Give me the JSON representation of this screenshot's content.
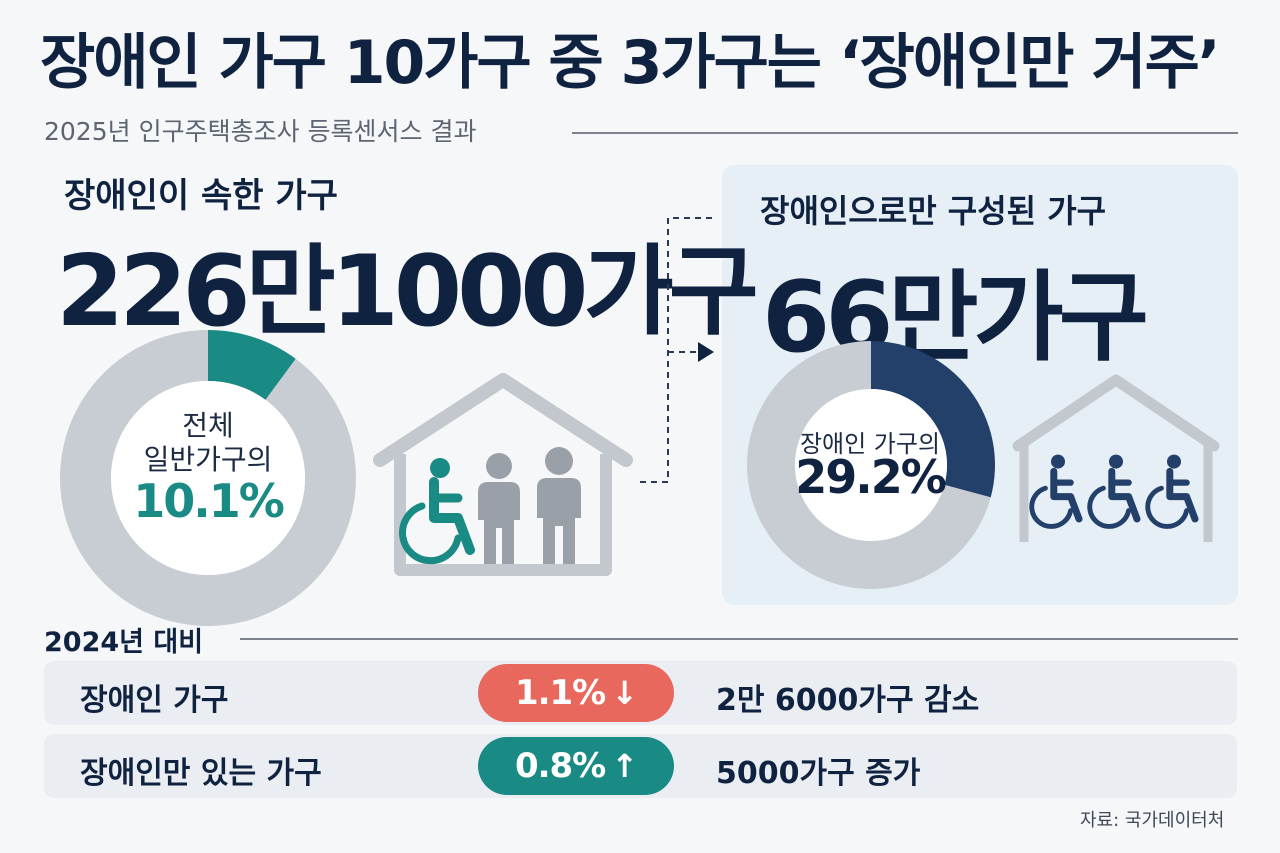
{
  "title": "장애인 가구 10가구 중 3가구는 ‘장애인만 거주’",
  "subtitle": "2025년 인구주택총조사 등록센서스 결과",
  "left_block": {
    "label": "장애인이 속한 가구",
    "value": "226만1000가구",
    "donut_line1": "전체",
    "donut_line2": "일반가구의",
    "donut_pct": "10.1%"
  },
  "right_block": {
    "label": "장애인으로만 구성된 가구",
    "value": "66만가구",
    "donut_line1": "장애인 가구의",
    "donut_pct": "29.2%"
  },
  "comparison": {
    "label": "2024년 대비",
    "rows": [
      {
        "label": "장애인 가구",
        "pill": "1.1%",
        "arrow": "↓",
        "detail": "2만 6000가구 감소"
      },
      {
        "label": "장애인만 있는 가구",
        "pill": "0.8%",
        "arrow": "↑",
        "detail": "5000가구 증가"
      }
    ]
  },
  "source": "자료: 국가데이터처",
  "colors": {
    "navy": "#23406a",
    "teal": "#1a8a84",
    "gray": "#c8cdd4",
    "down": "#e8685e",
    "up": "#1a8a84"
  },
  "icons": {
    "left_house": "house-icon",
    "left_people": [
      "wheelchair-icon",
      "person-icon",
      "person-icon"
    ],
    "right_house": "house-icon",
    "right_people": [
      "wheelchair-icon",
      "wheelchair-icon",
      "wheelchair-icon"
    ]
  },
  "chart_data": [
    {
      "type": "pie",
      "categories": [
        "장애인이 속한 가구",
        ""
      ],
      "values": [
        10.1,
        89.9
      ],
      "colors": [
        "#1a8a84",
        "#c8cdd4"
      ]
    },
    {
      "type": "pie",
      "categories": [
        "장애인으로만 구성된 가구",
        ""
      ],
      "values": [
        29.2,
        70.8
      ],
      "colors": [
        "#23406a",
        "#c8cdd4"
      ]
    }
  ]
}
